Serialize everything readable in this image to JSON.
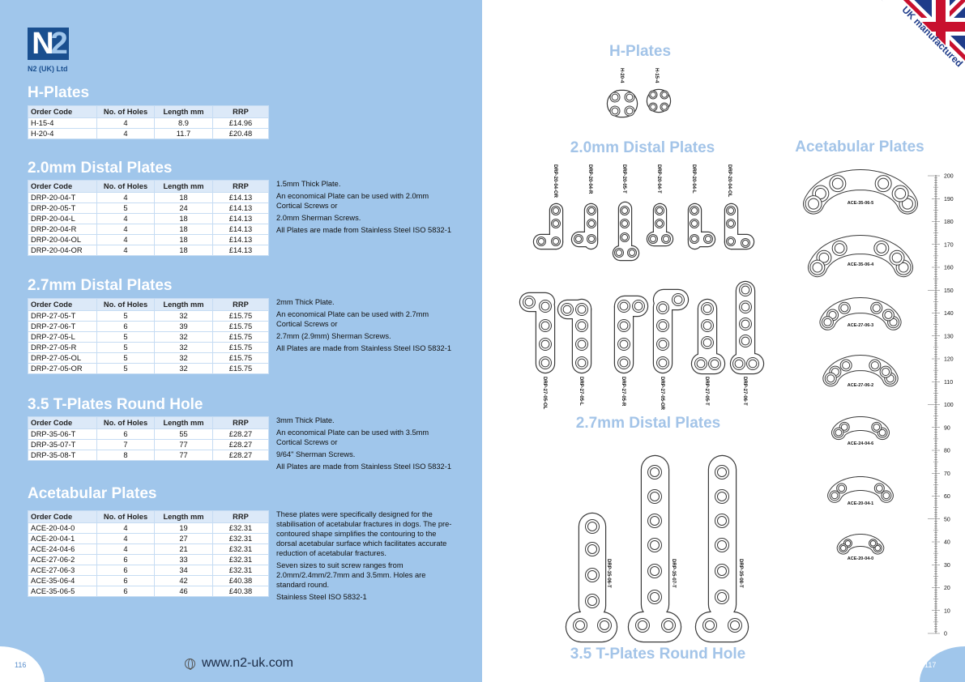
{
  "left": {
    "logo": {
      "n": "N",
      "two": "2",
      "company": "N2 (UK) Ltd"
    },
    "table_headers": [
      "Order Code",
      "No. of Holes",
      "Length mm",
      "RRP"
    ],
    "sections": [
      {
        "title": "H-Plates",
        "rows": [
          [
            "H-15-4",
            "4",
            "8.9",
            "£14.96"
          ],
          [
            "H-20-4",
            "4",
            "11.7",
            "£20.48"
          ]
        ],
        "description": []
      },
      {
        "title": "2.0mm Distal Plates",
        "rows": [
          [
            "DRP-20-04-T",
            "4",
            "18",
            "£14.13"
          ],
          [
            "DRP-20-05-T",
            "5",
            "24",
            "£14.13"
          ],
          [
            "DRP-20-04-L",
            "4",
            "18",
            "£14.13"
          ],
          [
            "DRP-20-04-R",
            "4",
            "18",
            "£14.13"
          ],
          [
            "DRP-20-04-OL",
            "4",
            "18",
            "£14.13"
          ],
          [
            "DRP-20-04-OR",
            "4",
            "18",
            "£14.13"
          ]
        ],
        "description": [
          "1.5mm Thick Plate.",
          "An economical Plate can be used with 2.0mm Cortical Screws or",
          "2.0mm Sherman Screws.",
          "All Plates are made from Stainless Steel ISO 5832-1"
        ]
      },
      {
        "title": "2.7mm Distal Plates",
        "rows": [
          [
            "DRP-27-05-T",
            "5",
            "32",
            "£15.75"
          ],
          [
            "DRP-27-06-T",
            "6",
            "39",
            "£15.75"
          ],
          [
            "DRP-27-05-L",
            "5",
            "32",
            "£15.75"
          ],
          [
            "DRP-27-05-R",
            "5",
            "32",
            "£15.75"
          ],
          [
            "DRP-27-05-OL",
            "5",
            "32",
            "£15.75"
          ],
          [
            "DRP-27-05-OR",
            "5",
            "32",
            "£15.75"
          ]
        ],
        "description": [
          "2mm Thick Plate.",
          "An economical Plate can be used with 2.7mm Cortical Screws or",
          "2.7mm (2.9mm) Sherman Screws.",
          "All Plates are made from Stainless Steel ISO 5832-1"
        ]
      },
      {
        "title": "3.5 T-Plates Round Hole",
        "rows": [
          [
            "DRP-35-06-T",
            "6",
            "55",
            "£28.27"
          ],
          [
            "DRP-35-07-T",
            "7",
            "77",
            "£28.27"
          ],
          [
            "DRP-35-08-T",
            "8",
            "77",
            "£28.27"
          ]
        ],
        "description": [
          "3mm Thick Plate.",
          "An economical Plate can be used with 3.5mm Cortical Screws or",
          "9/64\" Sherman Screws.",
          "All Plates are made from Stainless Steel ISO 5832-1"
        ]
      },
      {
        "title": "Acetabular Plates",
        "rows": [
          [
            "ACE-20-04-0",
            "4",
            "19",
            "£32.31"
          ],
          [
            "ACE-20-04-1",
            "4",
            "27",
            "£32.31"
          ],
          [
            "ACE-24-04-6",
            "4",
            "21",
            "£32.31"
          ],
          [
            "ACE-27-06-2",
            "6",
            "33",
            "£32.31"
          ],
          [
            "ACE-27-06-3",
            "6",
            "34",
            "£32.31"
          ],
          [
            "ACE-35-06-4",
            "6",
            "42",
            "£40.38"
          ],
          [
            "ACE-35-06-5",
            "6",
            "46",
            "£40.38"
          ]
        ],
        "description": [
          "These plates were specifically designed for the stabilisation of acetabular fractures in dogs. The pre-contoured shape simplifies the contouring to the dorsal acetabular surface which facilitates accurate reduction of acetabular fractures.",
          "Seven sizes to suit screw ranges from 2.0mm/2.4mm/2.7mm and 3.5mm. Holes are standard round.",
          "Stainless Steel  ISO 5832-1"
        ]
      }
    ],
    "website": "www.n2-uk.com",
    "page_number": "116"
  },
  "right": {
    "headings": {
      "h_plates": "H-Plates",
      "distal_20": "2.0mm Distal Plates",
      "acetabular": "Acetabular Plates",
      "distal_27": "2.7mm Distal Plates",
      "t_plates": "3.5 T-Plates Round Hole"
    },
    "badge": "UK manufactured",
    "h_plate_labels": [
      "H-20-4",
      "H-15-4"
    ],
    "distal_20_labels": [
      "DRP-20-04-OR",
      "DRP-20-04-R",
      "DRP-20-05-T",
      "DRP-20-04-T",
      "DRP-20-04-L",
      "DRP-20-04-OL"
    ],
    "distal_27_labels": [
      "DRP-27-05-OL",
      "DRP-27-05-L",
      "DRP-27-05-R",
      "DRP-27-05-OR",
      "DRP-27-05-T",
      "DRP-27-06-T"
    ],
    "t_plate_labels": [
      "DRP-35-06-T",
      "DRP-35-07-T",
      "DRP-35-08-T"
    ],
    "acetabular_labels": [
      "ACE-35-06-5",
      "ACE-35-06-4",
      "ACE-27-06-3",
      "ACE-27-06-2",
      "ACE-24-04-6",
      "ACE-20-04-1",
      "ACE-20-04-0"
    ],
    "ruler_labels": [
      "0",
      "10",
      "20",
      "30",
      "40",
      "50",
      "60",
      "70",
      "80",
      "90",
      "100",
      "110",
      "120",
      "130",
      "140",
      "150",
      "160",
      "170",
      "180",
      "190",
      "200"
    ],
    "page_number": "117",
    "colors": {
      "heading": "#a3c4e8",
      "left_background": "#a0c6eb",
      "brand": "#1a4f8f"
    }
  }
}
